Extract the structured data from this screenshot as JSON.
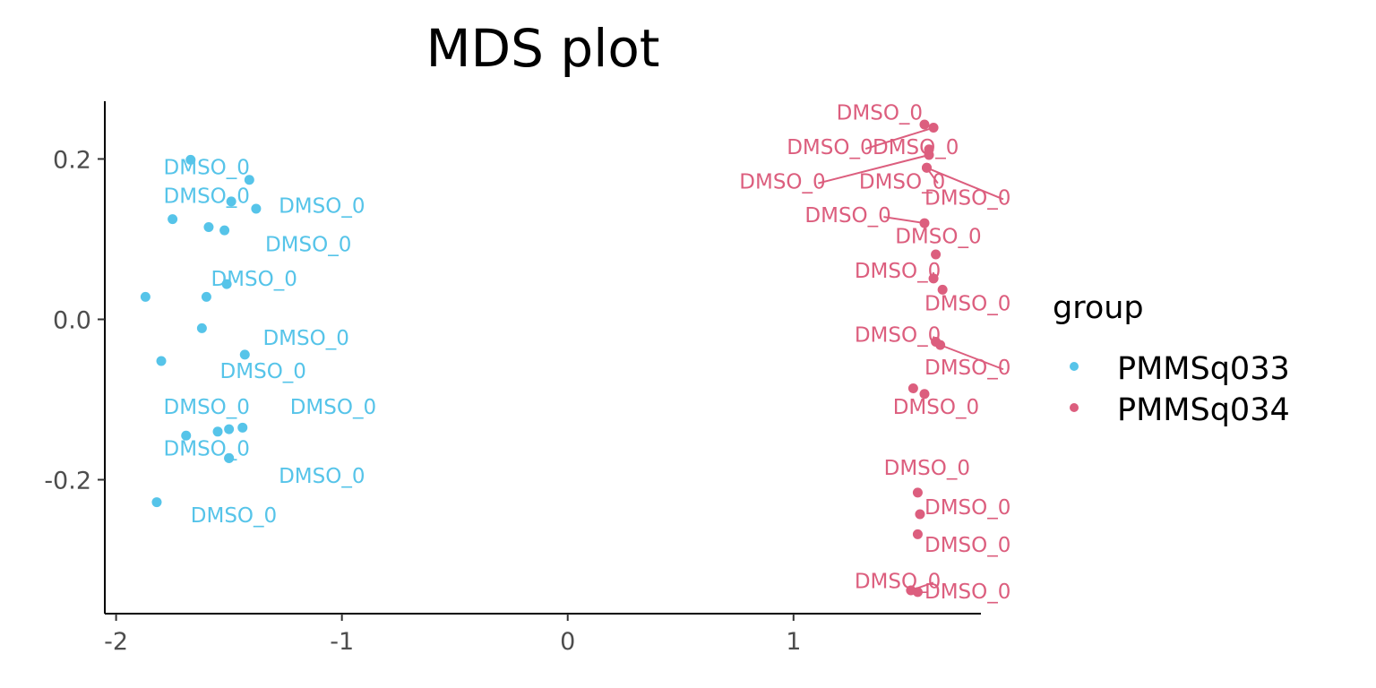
{
  "chart_data": {
    "type": "scatter",
    "title": "MDS plot",
    "xlabel": "",
    "ylabel": "",
    "xlim": [
      -2.05,
      1.83
    ],
    "ylim": [
      -0.367,
      0.272
    ],
    "x_ticks": [
      -2,
      -1,
      0,
      1
    ],
    "x_tick_labels": [
      "-2",
      "-1",
      "0",
      "1"
    ],
    "y_ticks": [
      0.2,
      0.0,
      -0.2
    ],
    "y_tick_labels": [
      "0.2",
      "0.0",
      "-0.2"
    ],
    "grid": false,
    "legend": {
      "title": "group",
      "position": "right"
    },
    "series": [
      {
        "name": "PMMSq033",
        "color": "#56c4e9",
        "points": [
          {
            "x": -1.67,
            "y": 0.199,
            "label": "DMSO_0",
            "lx": -1.79,
            "ly": 0.181
          },
          {
            "x": -1.41,
            "y": 0.174,
            "label": "",
            "lx": null,
            "ly": null
          },
          {
            "x": -1.49,
            "y": 0.147,
            "label": "DMSO_0",
            "lx": -1.79,
            "ly": 0.145
          },
          {
            "x": -1.38,
            "y": 0.138,
            "label": "DMSO_0",
            "lx": -1.28,
            "ly": 0.133
          },
          {
            "x": -1.75,
            "y": 0.125,
            "label": "",
            "lx": null,
            "ly": null
          },
          {
            "x": -1.59,
            "y": 0.115,
            "label": "",
            "lx": null,
            "ly": null
          },
          {
            "x": -1.52,
            "y": 0.111,
            "label": "DMSO_0",
            "lx": -1.34,
            "ly": 0.085
          },
          {
            "x": -1.51,
            "y": 0.044,
            "label": "DMSO_0",
            "lx": -1.58,
            "ly": 0.042
          },
          {
            "x": -1.87,
            "y": 0.028,
            "label": "",
            "lx": null,
            "ly": null
          },
          {
            "x": -1.6,
            "y": 0.028,
            "label": "",
            "lx": null,
            "ly": null
          },
          {
            "x": -1.62,
            "y": -0.011,
            "label": "DMSO_0",
            "lx": -1.35,
            "ly": -0.032
          },
          {
            "x": -1.43,
            "y": -0.044,
            "label": "",
            "lx": null,
            "ly": null
          },
          {
            "x": -1.8,
            "y": -0.052,
            "label": "DMSO_0",
            "lx": -1.54,
            "ly": -0.073
          },
          {
            "x": -1.44,
            "y": -0.135,
            "label": "DMSO_0",
            "lx": -1.23,
            "ly": -0.118
          },
          {
            "x": -1.5,
            "y": -0.137,
            "label": "DMSO_0",
            "lx": -1.79,
            "ly": -0.118
          },
          {
            "x": -1.55,
            "y": -0.14,
            "label": "",
            "lx": null,
            "ly": null
          },
          {
            "x": -1.69,
            "y": -0.145,
            "label": "",
            "lx": null,
            "ly": null
          },
          {
            "x": -1.5,
            "y": -0.173,
            "label": "DMSO_0",
            "lx": -1.79,
            "ly": -0.17
          },
          {
            "x": -1.82,
            "y": -0.228,
            "label": "DMSO_0",
            "lx": -1.67,
            "ly": -0.253
          },
          {
            "x": -1.5,
            "y": -0.173,
            "label": "DMSO_0",
            "lx": -1.28,
            "ly": -0.204
          }
        ]
      },
      {
        "name": "PMMSq034",
        "color": "#dc5e7e",
        "points": [
          {
            "x": 1.58,
            "y": 0.243,
            "label": "DMSO_0",
            "lx": 1.19,
            "ly": 0.249
          },
          {
            "x": 1.62,
            "y": 0.239,
            "label": "DMSO_0",
            "lx": 0.97,
            "ly": 0.206,
            "line": true
          },
          {
            "x": 1.6,
            "y": 0.212,
            "label": "DMSO_0",
            "lx": 1.35,
            "ly": 0.206
          },
          {
            "x": 1.6,
            "y": 0.205,
            "label": "DMSO_0",
            "lx": 0.76,
            "ly": 0.163,
            "line": true
          },
          {
            "x": 1.59,
            "y": 0.189,
            "label": "DMSO_0",
            "lx": 1.29,
            "ly": 0.163,
            "line": true
          },
          {
            "x": 1.59,
            "y": 0.189,
            "label": "DMSO_0",
            "lx": 1.58,
            "ly": 0.143,
            "line": true
          },
          {
            "x": 1.58,
            "y": 0.12,
            "label": "DMSO_0",
            "lx": 1.05,
            "ly": 0.121,
            "line": true
          },
          {
            "x": 1.63,
            "y": 0.081,
            "label": "DMSO_0",
            "lx": 1.45,
            "ly": 0.095
          },
          {
            "x": 1.62,
            "y": 0.051,
            "label": "DMSO_0",
            "lx": 1.27,
            "ly": 0.052,
            "line": true
          },
          {
            "x": 1.66,
            "y": 0.037,
            "label": "DMSO_0",
            "lx": 1.58,
            "ly": 0.011
          },
          {
            "x": 1.63,
            "y": -0.028,
            "label": "DMSO_0",
            "lx": 1.27,
            "ly": -0.028,
            "line": true
          },
          {
            "x": 1.65,
            "y": -0.032,
            "label": "DMSO_0",
            "lx": 1.58,
            "ly": -0.069,
            "line": true
          },
          {
            "x": 1.53,
            "y": -0.086,
            "label": "",
            "lx": null,
            "ly": null
          },
          {
            "x": 1.58,
            "y": -0.093,
            "label": "DMSO_0",
            "lx": 1.44,
            "ly": -0.118
          },
          {
            "x": 1.55,
            "y": -0.216,
            "label": "DMSO_0",
            "lx": 1.4,
            "ly": -0.194
          },
          {
            "x": 1.56,
            "y": -0.243,
            "label": "DMSO_0",
            "lx": 1.58,
            "ly": -0.243
          },
          {
            "x": 1.55,
            "y": -0.268,
            "label": "DMSO_0",
            "lx": 1.58,
            "ly": -0.29
          },
          {
            "x": 1.52,
            "y": -0.338,
            "label": "DMSO_0",
            "lx": 1.27,
            "ly": -0.335,
            "line": true
          },
          {
            "x": 1.55,
            "y": -0.34,
            "label": "DMSO_0",
            "lx": 1.58,
            "ly": -0.348
          }
        ]
      }
    ]
  }
}
